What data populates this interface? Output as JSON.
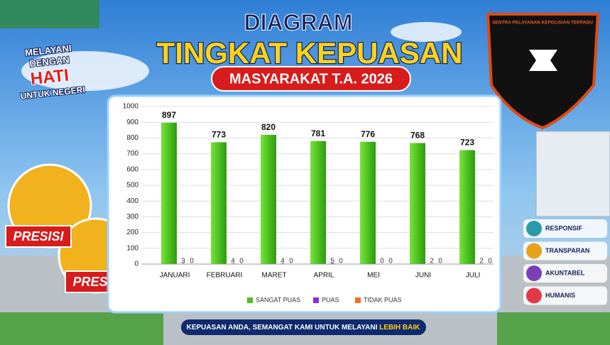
{
  "heading": {
    "line1": "DIAGRAM",
    "line2": "TINGKAT KEPUASAN",
    "line3": "MASYARAKAT T.A. 2026"
  },
  "slogan": [
    "MELAYANI",
    "DENGAN",
    "HATI",
    "UNTUK NEGERI"
  ],
  "badge": "SENTRA PELAYANAN KEPOLISIAN TERPADU",
  "stickers": [
    "PRESISI",
    "PRESISI"
  ],
  "pillars": [
    "RESPONSIF",
    "TRANSPARAN",
    "AKUNTABEL",
    "HUMANIS"
  ],
  "footer": {
    "text": "KEPUASAN ANDA, SEMANGAT KAMI UNTUK MELAYANI",
    "highlight": "LEBIH BAIK"
  },
  "chart_data": {
    "type": "bar",
    "categories": [
      "JANUARI",
      "FEBRUARI",
      "MARET",
      "APRIL",
      "MEI",
      "JUNI",
      "JULI"
    ],
    "series": [
      {
        "name": "SANGAT PUAS",
        "color": "#4cc21f",
        "values": [
          897,
          773,
          820,
          781,
          776,
          768,
          723
        ]
      },
      {
        "name": "PUAS",
        "color": "#8a2be2",
        "values": [
          3,
          4,
          4,
          5,
          0,
          2,
          2
        ]
      },
      {
        "name": "TIDAK PUAS",
        "color": "#f07020",
        "values": [
          0,
          0,
          0,
          0,
          0,
          0,
          0
        ]
      }
    ],
    "ylim": [
      0,
      1000
    ],
    "yticks": [
      0,
      100,
      200,
      300,
      400,
      500,
      600,
      700,
      800,
      900,
      1000
    ],
    "grid": true,
    "legend": "bottom"
  }
}
